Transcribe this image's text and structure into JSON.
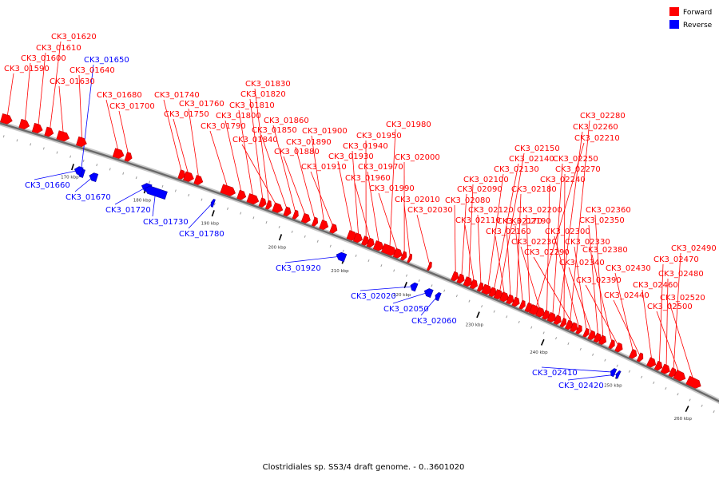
{
  "caption": "Clostridiales sp. SS3/4 draft genome. - 0..3601020",
  "legend": [
    {
      "label": "Forward",
      "color": "#ff0000"
    },
    {
      "label": "Reverse",
      "color": "#0000ff"
    }
  ],
  "colors": {
    "forward": "#ff0000",
    "reverse": "#0000ff",
    "backbone": "#808080"
  },
  "tick_labels": [
    "170 kbp",
    "180 kbp",
    "190 kbp",
    "200 kbp",
    "210 kbp",
    "220 kbp",
    "230 kbp",
    "240 kbp",
    "250 kbp",
    "260 kbp"
  ],
  "genes": [
    {
      "id": "CK3_01590",
      "strand": "forward"
    },
    {
      "id": "CK3_01600",
      "strand": "forward"
    },
    {
      "id": "CK3_01610",
      "strand": "forward"
    },
    {
      "id": "CK3_01620",
      "strand": "forward"
    },
    {
      "id": "CK3_01630",
      "strand": "forward"
    },
    {
      "id": "CK3_01640",
      "strand": "forward"
    },
    {
      "id": "CK3_01650",
      "strand": "reverse"
    },
    {
      "id": "CK3_01660",
      "strand": "reverse"
    },
    {
      "id": "CK3_01670",
      "strand": "reverse"
    },
    {
      "id": "CK3_01680",
      "strand": "forward"
    },
    {
      "id": "CK3_01700",
      "strand": "forward"
    },
    {
      "id": "CK3_01720",
      "strand": "reverse"
    },
    {
      "id": "CK3_01730",
      "strand": "reverse"
    },
    {
      "id": "CK3_01740",
      "strand": "forward"
    },
    {
      "id": "CK3_01750",
      "strand": "forward"
    },
    {
      "id": "CK3_01760",
      "strand": "forward"
    },
    {
      "id": "CK3_01780",
      "strand": "reverse"
    },
    {
      "id": "CK3_01790",
      "strand": "forward"
    },
    {
      "id": "CK3_01800",
      "strand": "forward"
    },
    {
      "id": "CK3_01810",
      "strand": "forward"
    },
    {
      "id": "CK3_01820",
      "strand": "forward"
    },
    {
      "id": "CK3_01830",
      "strand": "forward"
    },
    {
      "id": "CK3_01840",
      "strand": "forward"
    },
    {
      "id": "CK3_01850",
      "strand": "forward"
    },
    {
      "id": "CK3_01860",
      "strand": "forward"
    },
    {
      "id": "CK3_01880",
      "strand": "forward"
    },
    {
      "id": "CK3_01890",
      "strand": "forward"
    },
    {
      "id": "CK3_01900",
      "strand": "forward"
    },
    {
      "id": "CK3_01910",
      "strand": "forward"
    },
    {
      "id": "CK3_01920",
      "strand": "reverse"
    },
    {
      "id": "CK3_01930",
      "strand": "forward"
    },
    {
      "id": "CK3_01940",
      "strand": "forward"
    },
    {
      "id": "CK3_01950",
      "strand": "forward"
    },
    {
      "id": "CK3_01960",
      "strand": "forward"
    },
    {
      "id": "CK3_01970",
      "strand": "forward"
    },
    {
      "id": "CK3_01980",
      "strand": "forward"
    },
    {
      "id": "CK3_01990",
      "strand": "forward"
    },
    {
      "id": "CK3_02000",
      "strand": "forward"
    },
    {
      "id": "CK3_02010",
      "strand": "forward"
    },
    {
      "id": "CK3_02020",
      "strand": "reverse"
    },
    {
      "id": "CK3_02030",
      "strand": "forward"
    },
    {
      "id": "CK3_02050",
      "strand": "reverse"
    },
    {
      "id": "CK3_02060",
      "strand": "reverse"
    },
    {
      "id": "CK3_02080",
      "strand": "forward"
    },
    {
      "id": "CK3_02090",
      "strand": "forward"
    },
    {
      "id": "CK3_02100",
      "strand": "forward"
    },
    {
      "id": "CK3_02110",
      "strand": "forward"
    },
    {
      "id": "CK3_02120",
      "strand": "forward"
    },
    {
      "id": "CK3_02130",
      "strand": "forward"
    },
    {
      "id": "CK3_02140",
      "strand": "forward"
    },
    {
      "id": "CK3_02150",
      "strand": "forward"
    },
    {
      "id": "CK3_02160",
      "strand": "forward"
    },
    {
      "id": "CK3_02170",
      "strand": "forward"
    },
    {
      "id": "CK3_02180",
      "strand": "forward"
    },
    {
      "id": "CK3_02190",
      "strand": "forward"
    },
    {
      "id": "CK3_02200",
      "strand": "forward"
    },
    {
      "id": "CK3_02210",
      "strand": "forward"
    },
    {
      "id": "CK3_02230",
      "strand": "forward"
    },
    {
      "id": "CK3_02240",
      "strand": "forward"
    },
    {
      "id": "CK3_02250",
      "strand": "forward"
    },
    {
      "id": "CK3_02260",
      "strand": "forward"
    },
    {
      "id": "CK3_02270",
      "strand": "forward"
    },
    {
      "id": "CK3_02280",
      "strand": "forward"
    },
    {
      "id": "CK3_02290",
      "strand": "forward"
    },
    {
      "id": "CK3_02300",
      "strand": "forward"
    },
    {
      "id": "CK3_02330",
      "strand": "forward"
    },
    {
      "id": "CK3_02340",
      "strand": "forward"
    },
    {
      "id": "CK3_02350",
      "strand": "forward"
    },
    {
      "id": "CK3_02360",
      "strand": "forward"
    },
    {
      "id": "CK3_02380",
      "strand": "forward"
    },
    {
      "id": "CK3_02390",
      "strand": "forward"
    },
    {
      "id": "CK3_02410",
      "strand": "reverse"
    },
    {
      "id": "CK3_02420",
      "strand": "reverse"
    },
    {
      "id": "CK3_02430",
      "strand": "forward"
    },
    {
      "id": "CK3_02440",
      "strand": "forward"
    },
    {
      "id": "CK3_02460",
      "strand": "forward"
    },
    {
      "id": "CK3_02470",
      "strand": "forward"
    },
    {
      "id": "CK3_02480",
      "strand": "forward"
    },
    {
      "id": "CK3_02490",
      "strand": "forward"
    },
    {
      "id": "CK3_02500",
      "strand": "forward"
    },
    {
      "id": "CK3_02520",
      "strand": "forward"
    }
  ]
}
